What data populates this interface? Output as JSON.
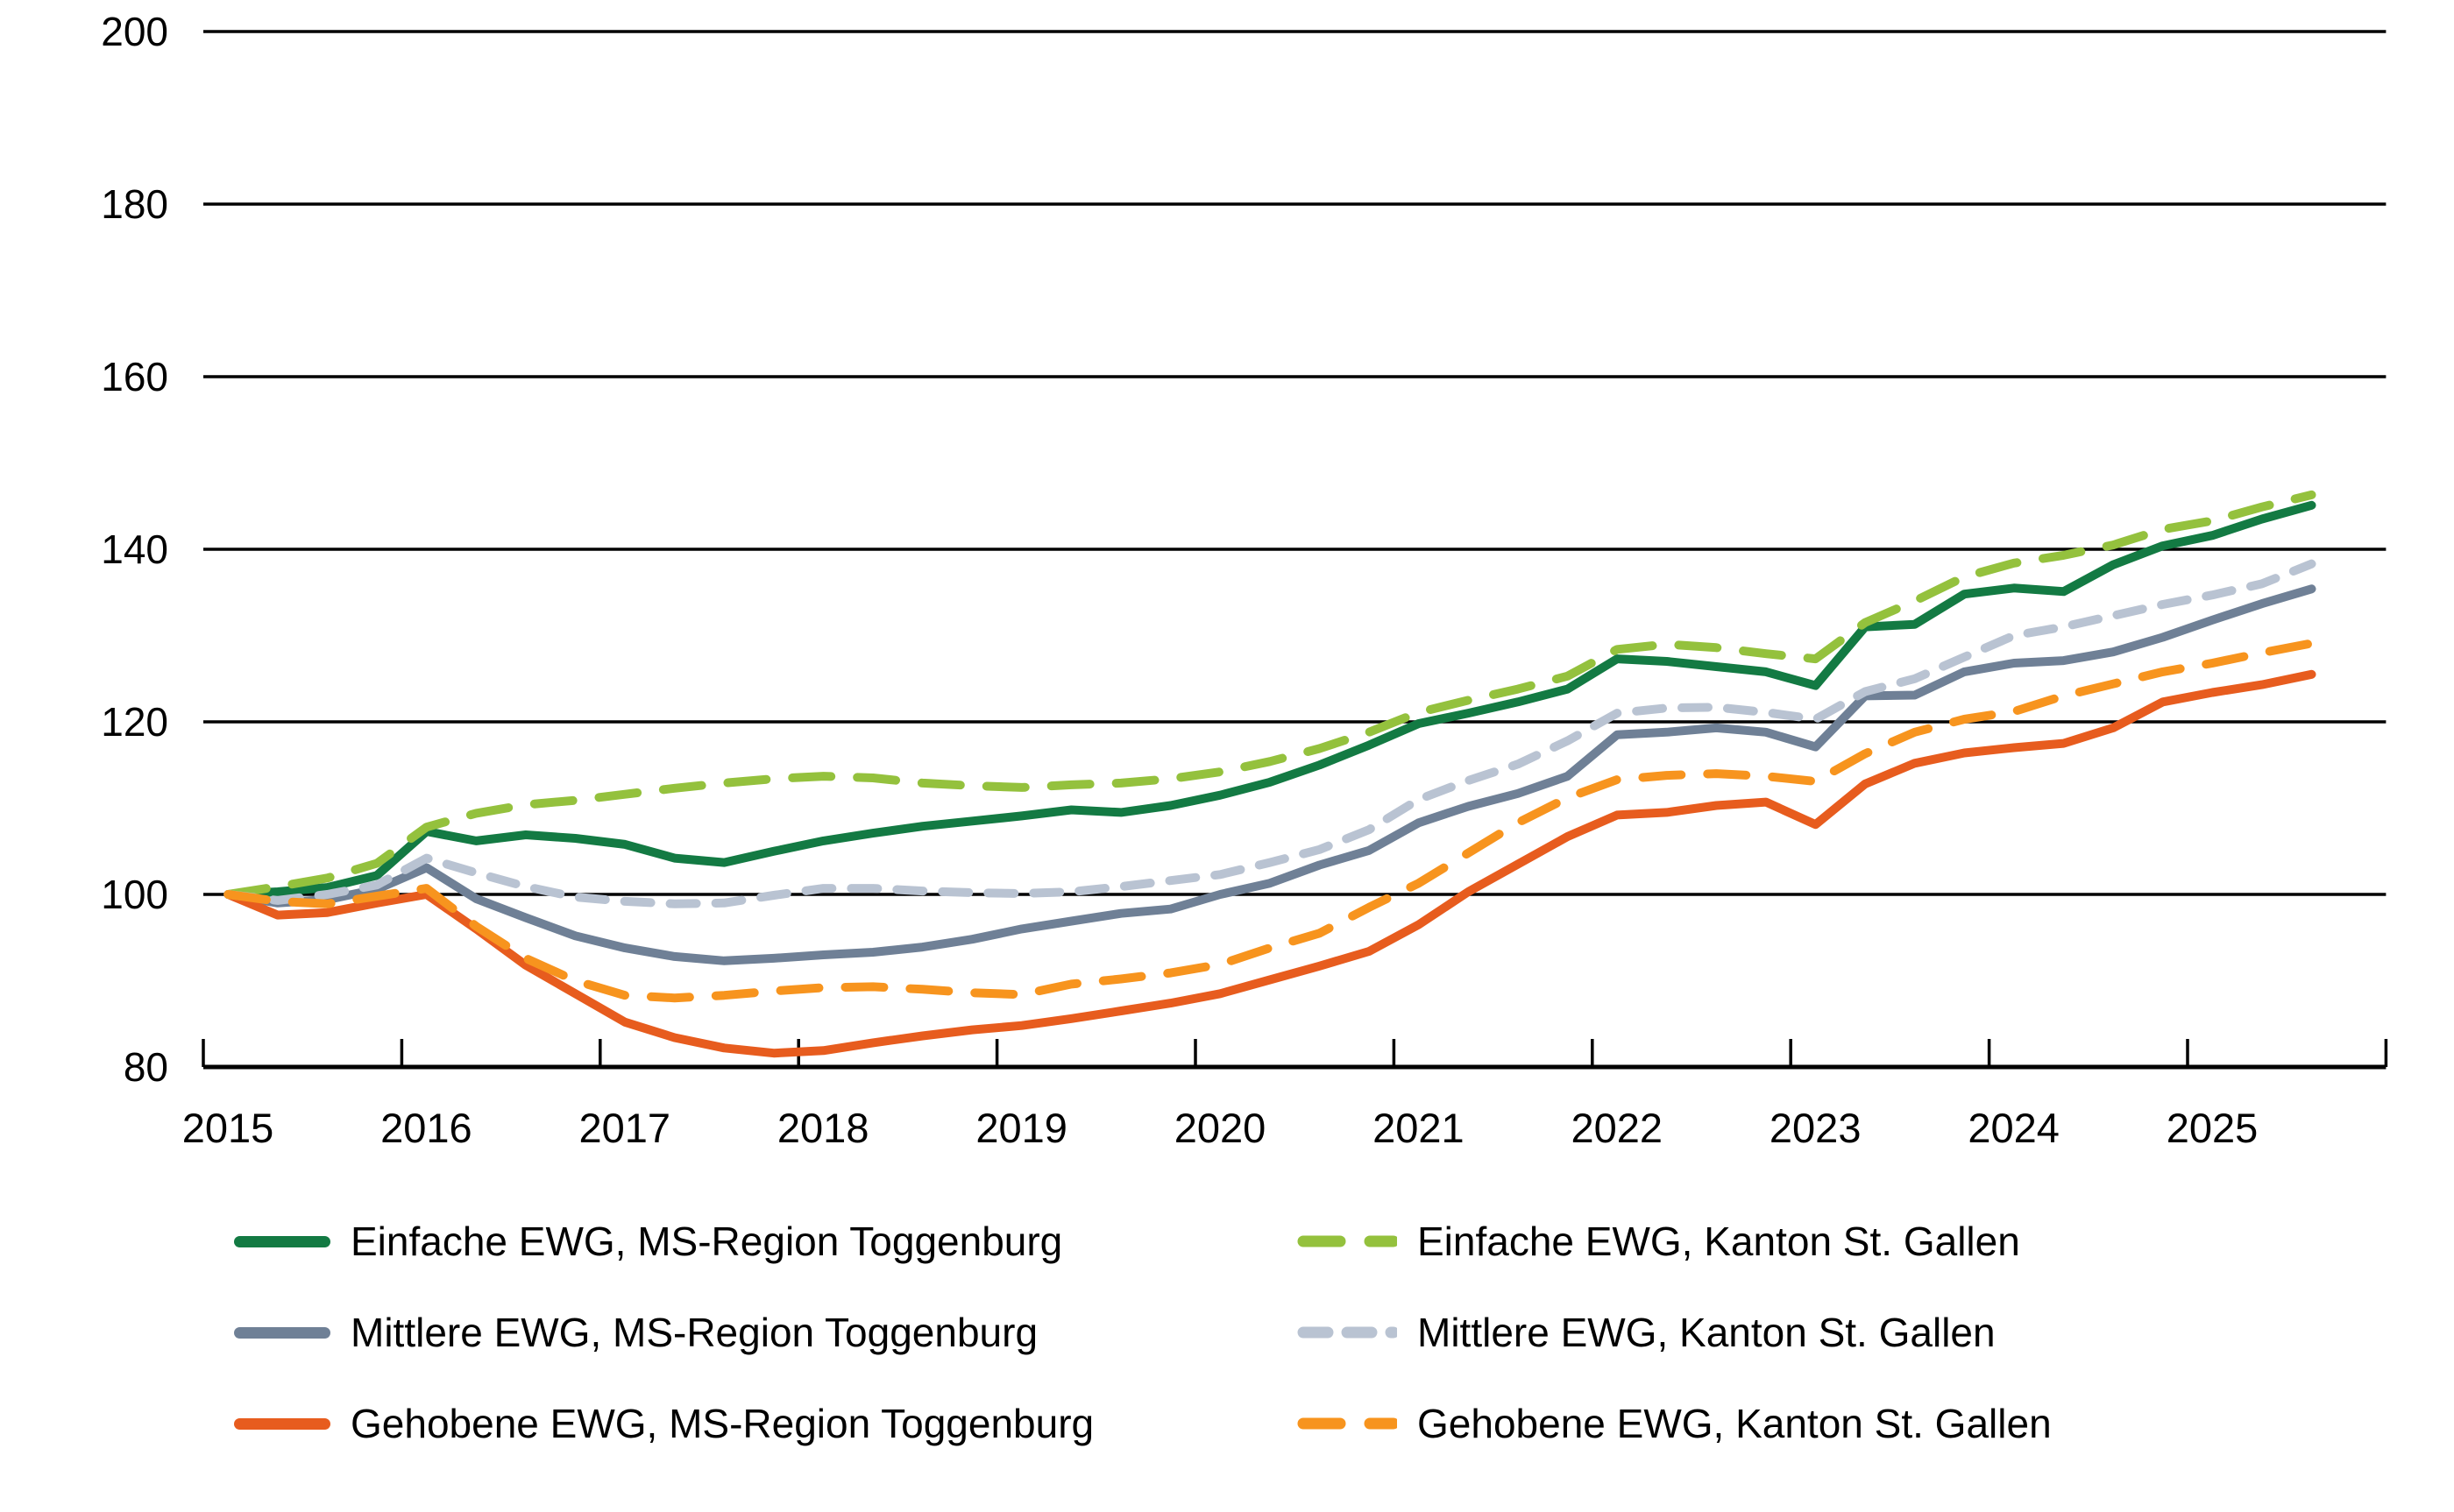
{
  "chart_data": {
    "type": "line",
    "title": "",
    "xlabel": "",
    "ylabel": "",
    "grid": "horizontal",
    "legend_position": "bottom-two-columns",
    "x_axis": {
      "tick_labels": [
        "2015",
        "2016",
        "2017",
        "2018",
        "2019",
        "2020",
        "2021",
        "2022",
        "2023",
        "2024",
        "2025"
      ],
      "range_years": [
        2015,
        2026
      ],
      "data_start": 2015.125,
      "data_step_years": 0.25
    },
    "y_axis": {
      "ticks": [
        "80",
        "100",
        "120",
        "140",
        "160",
        "180",
        "200"
      ],
      "tick_values": [
        80,
        100,
        120,
        140,
        160,
        180,
        200
      ],
      "min": 80,
      "max": 200
    },
    "series": [
      {
        "id": "einfache-toggenburg",
        "label": "Einfache EWG, MS-Region Toggenburg",
        "color": "#137A43",
        "style": "solid",
        "legend_col": 0,
        "values": [
          100,
          100.3,
          100.8,
          102.2,
          107.3,
          106.2,
          106.9,
          106.5,
          105.8,
          104.2,
          103.7,
          105.0,
          106.2,
          107.1,
          107.9,
          108.5,
          109.1,
          109.8,
          109.5,
          110.3,
          111.5,
          113.0,
          115.0,
          117.3,
          119.8,
          121.0,
          122.3,
          123.8,
          127.3,
          127.0,
          126.4,
          125.8,
          124.2,
          131.0,
          131.3,
          134.8,
          135.5,
          135.1,
          138.2,
          140.4,
          141.6,
          143.5,
          145.1
        ]
      },
      {
        "id": "mittlere-toggenburg",
        "label": "Mittlere EWG, MS-Region Toggenburg",
        "color": "#6F8096",
        "style": "solid",
        "legend_col": 0,
        "values": [
          100,
          99.0,
          99.4,
          100.6,
          103.1,
          99.5,
          97.3,
          95.2,
          93.8,
          92.8,
          92.3,
          92.6,
          93.0,
          93.3,
          93.9,
          94.8,
          96.0,
          96.9,
          97.8,
          98.3,
          100.0,
          101.3,
          103.4,
          105.1,
          108.3,
          110.2,
          111.7,
          113.7,
          118.5,
          118.8,
          119.3,
          118.8,
          117.1,
          123.0,
          123.1,
          125.8,
          126.8,
          127.1,
          128.1,
          129.8,
          131.8,
          133.7,
          135.4
        ]
      },
      {
        "id": "gehobene-toggenburg",
        "label": "Gehobene EWG, MS-Region Toggenburg",
        "color": "#E75C1E",
        "style": "solid",
        "legend_col": 0,
        "values": [
          100,
          97.6,
          97.9,
          99.0,
          100.0,
          96.0,
          91.8,
          88.5,
          85.2,
          83.4,
          82.2,
          81.6,
          81.9,
          82.8,
          83.6,
          84.3,
          84.8,
          85.6,
          86.5,
          87.4,
          88.5,
          90.1,
          91.7,
          93.4,
          96.5,
          100.3,
          103.5,
          106.7,
          109.2,
          109.5,
          110.3,
          110.7,
          108.1,
          112.8,
          115.2,
          116.4,
          117.0,
          117.5,
          119.3,
          122.3,
          123.4,
          124.3,
          125.5
        ]
      },
      {
        "id": "einfache-kanton",
        "label": "Einfache EWG, Kanton St. Gallen",
        "color": "#94C13D",
        "style": "dashed",
        "dash": [
          44,
          30
        ],
        "legend_col": 1,
        "values": [
          100,
          100.9,
          101.9,
          103.6,
          107.8,
          109.4,
          110.4,
          110.9,
          111.6,
          112.3,
          112.9,
          113.4,
          113.7,
          113.5,
          112.9,
          112.6,
          112.4,
          112.7,
          112.9,
          113.4,
          114.2,
          115.4,
          116.9,
          118.8,
          121.1,
          122.5,
          123.8,
          125.3,
          128.4,
          129.0,
          128.6,
          127.9,
          127.3,
          131.5,
          134.0,
          136.8,
          138.4,
          139.3,
          140.5,
          142.3,
          143.3,
          144.9,
          146.3
        ]
      },
      {
        "id": "mittlere-kanton",
        "label": "Mittlere EWG, Kanton St. Gallen",
        "color": "#B9C3D2",
        "style": "dashed",
        "dash": [
          30,
          22
        ],
        "legend_col": 1,
        "values": [
          100,
          99.3,
          100.0,
          101.1,
          104.2,
          102.5,
          100.9,
          99.7,
          99.2,
          98.9,
          99.0,
          99.9,
          100.7,
          100.7,
          100.4,
          100.2,
          100.1,
          100.3,
          100.9,
          101.6,
          102.3,
          103.7,
          105.2,
          107.5,
          111.0,
          113.2,
          115.1,
          117.8,
          121.0,
          121.6,
          121.7,
          121.1,
          120.3,
          123.5,
          125.0,
          127.5,
          130.0,
          131.0,
          132.3,
          133.6,
          134.7,
          136.0,
          138.3
        ]
      },
      {
        "id": "gehobene-kanton",
        "label": "Gehobene EWG, Kanton St. Gallen",
        "color": "#F7941E",
        "style": "dashed",
        "dash": [
          44,
          30
        ],
        "legend_col": 1,
        "values": [
          100,
          99.2,
          98.9,
          99.8,
          100.7,
          96.3,
          92.6,
          90.0,
          88.3,
          88.0,
          88.3,
          88.8,
          89.2,
          89.3,
          89.0,
          88.6,
          88.4,
          89.6,
          90.2,
          90.9,
          91.9,
          93.8,
          95.5,
          98.5,
          101.3,
          104.8,
          108.3,
          111.2,
          113.3,
          113.8,
          114.0,
          113.7,
          113.1,
          116.3,
          118.8,
          120.3,
          121.2,
          123.0,
          124.4,
          125.8,
          126.8,
          128.0,
          129.1
        ]
      }
    ],
    "colors": {
      "grid": "#000000",
      "axis": "#000000",
      "text": "#000000",
      "background": "#FFFFFF"
    }
  }
}
